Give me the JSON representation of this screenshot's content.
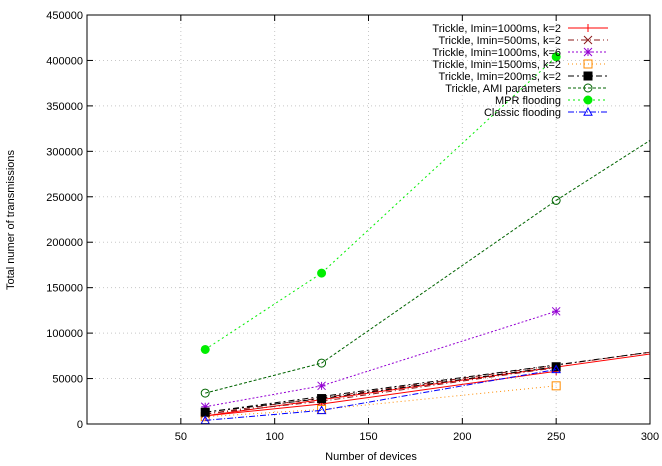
{
  "chart_data": {
    "type": "line",
    "title": "",
    "xlabel": "Number of devices",
    "ylabel": "Total numer of transmissions",
    "xlim": [
      0,
      300
    ],
    "ylim": [
      0,
      450000
    ],
    "grid": true,
    "legend_position": "top-right",
    "x_ticks": [
      50,
      100,
      150,
      200,
      250,
      300
    ],
    "y_ticks": [
      0,
      50000,
      100000,
      150000,
      200000,
      250000,
      300000,
      350000,
      400000,
      450000
    ],
    "series": [
      {
        "name": "Trickle, Imin=1000ms, k=2",
        "color": "#ff0000",
        "marker": "plus",
        "dash": "",
        "points": [
          [
            63,
            9000
          ],
          [
            125,
            22000
          ],
          [
            250,
            58000
          ]
        ],
        "fit": [
          [
            63,
            9000
          ],
          [
            300,
            77000
          ]
        ]
      },
      {
        "name": "Trickle, Imin=500ms, k=2",
        "color": "#8b1a1a",
        "marker": "cross",
        "dash": "6 3 1 3",
        "points": [
          [
            63,
            11000
          ],
          [
            125,
            25000
          ],
          [
            250,
            62000
          ]
        ],
        "fit": [
          [
            63,
            11000
          ],
          [
            300,
            79000
          ]
        ]
      },
      {
        "name": "Trickle, Imin=1000ms, k=6",
        "color": "#9400d3",
        "marker": "star",
        "dash": "2 2",
        "points": [
          [
            63,
            19000
          ],
          [
            125,
            42000
          ],
          [
            250,
            124000
          ]
        ],
        "fit": []
      },
      {
        "name": "Trickle, Imin=1500ms, k=2",
        "color": "#ff8c00",
        "marker": "open-square",
        "dash": "1 3",
        "points": [
          [
            63,
            8000
          ],
          [
            125,
            16000
          ],
          [
            250,
            42000
          ]
        ],
        "fit": []
      },
      {
        "name": "Trickle, Imin=200ms, k=2",
        "color": "#000000",
        "marker": "filled-square",
        "dash": "6 3 2 3",
        "points": [
          [
            63,
            13000
          ],
          [
            125,
            28000
          ],
          [
            250,
            63000
          ]
        ],
        "fit": [
          [
            63,
            13000
          ],
          [
            300,
            79000
          ]
        ]
      },
      {
        "name": "Trickle,  AMI parameters",
        "color": "#006400",
        "marker": "open-circle",
        "dash": "3 2",
        "points": [
          [
            63,
            34000
          ],
          [
            125,
            67000
          ],
          [
            250,
            246000
          ]
        ],
        "fit": [
          [
            250,
            246000
          ],
          [
            300,
            312000
          ]
        ]
      },
      {
        "name": "MPR flooding",
        "color": "#00ee00",
        "marker": "filled-circle",
        "dash": "2 3",
        "points": [
          [
            63,
            82000
          ],
          [
            125,
            166000
          ],
          [
            250,
            404000
          ]
        ],
        "fit": []
      },
      {
        "name": "Classic flooding",
        "color": "#0000ff",
        "marker": "open-triangle",
        "dash": "6 2 1 2",
        "points": [
          [
            63,
            4000
          ],
          [
            125,
            15000
          ],
          [
            250,
            60000
          ]
        ],
        "fit": []
      }
    ]
  }
}
